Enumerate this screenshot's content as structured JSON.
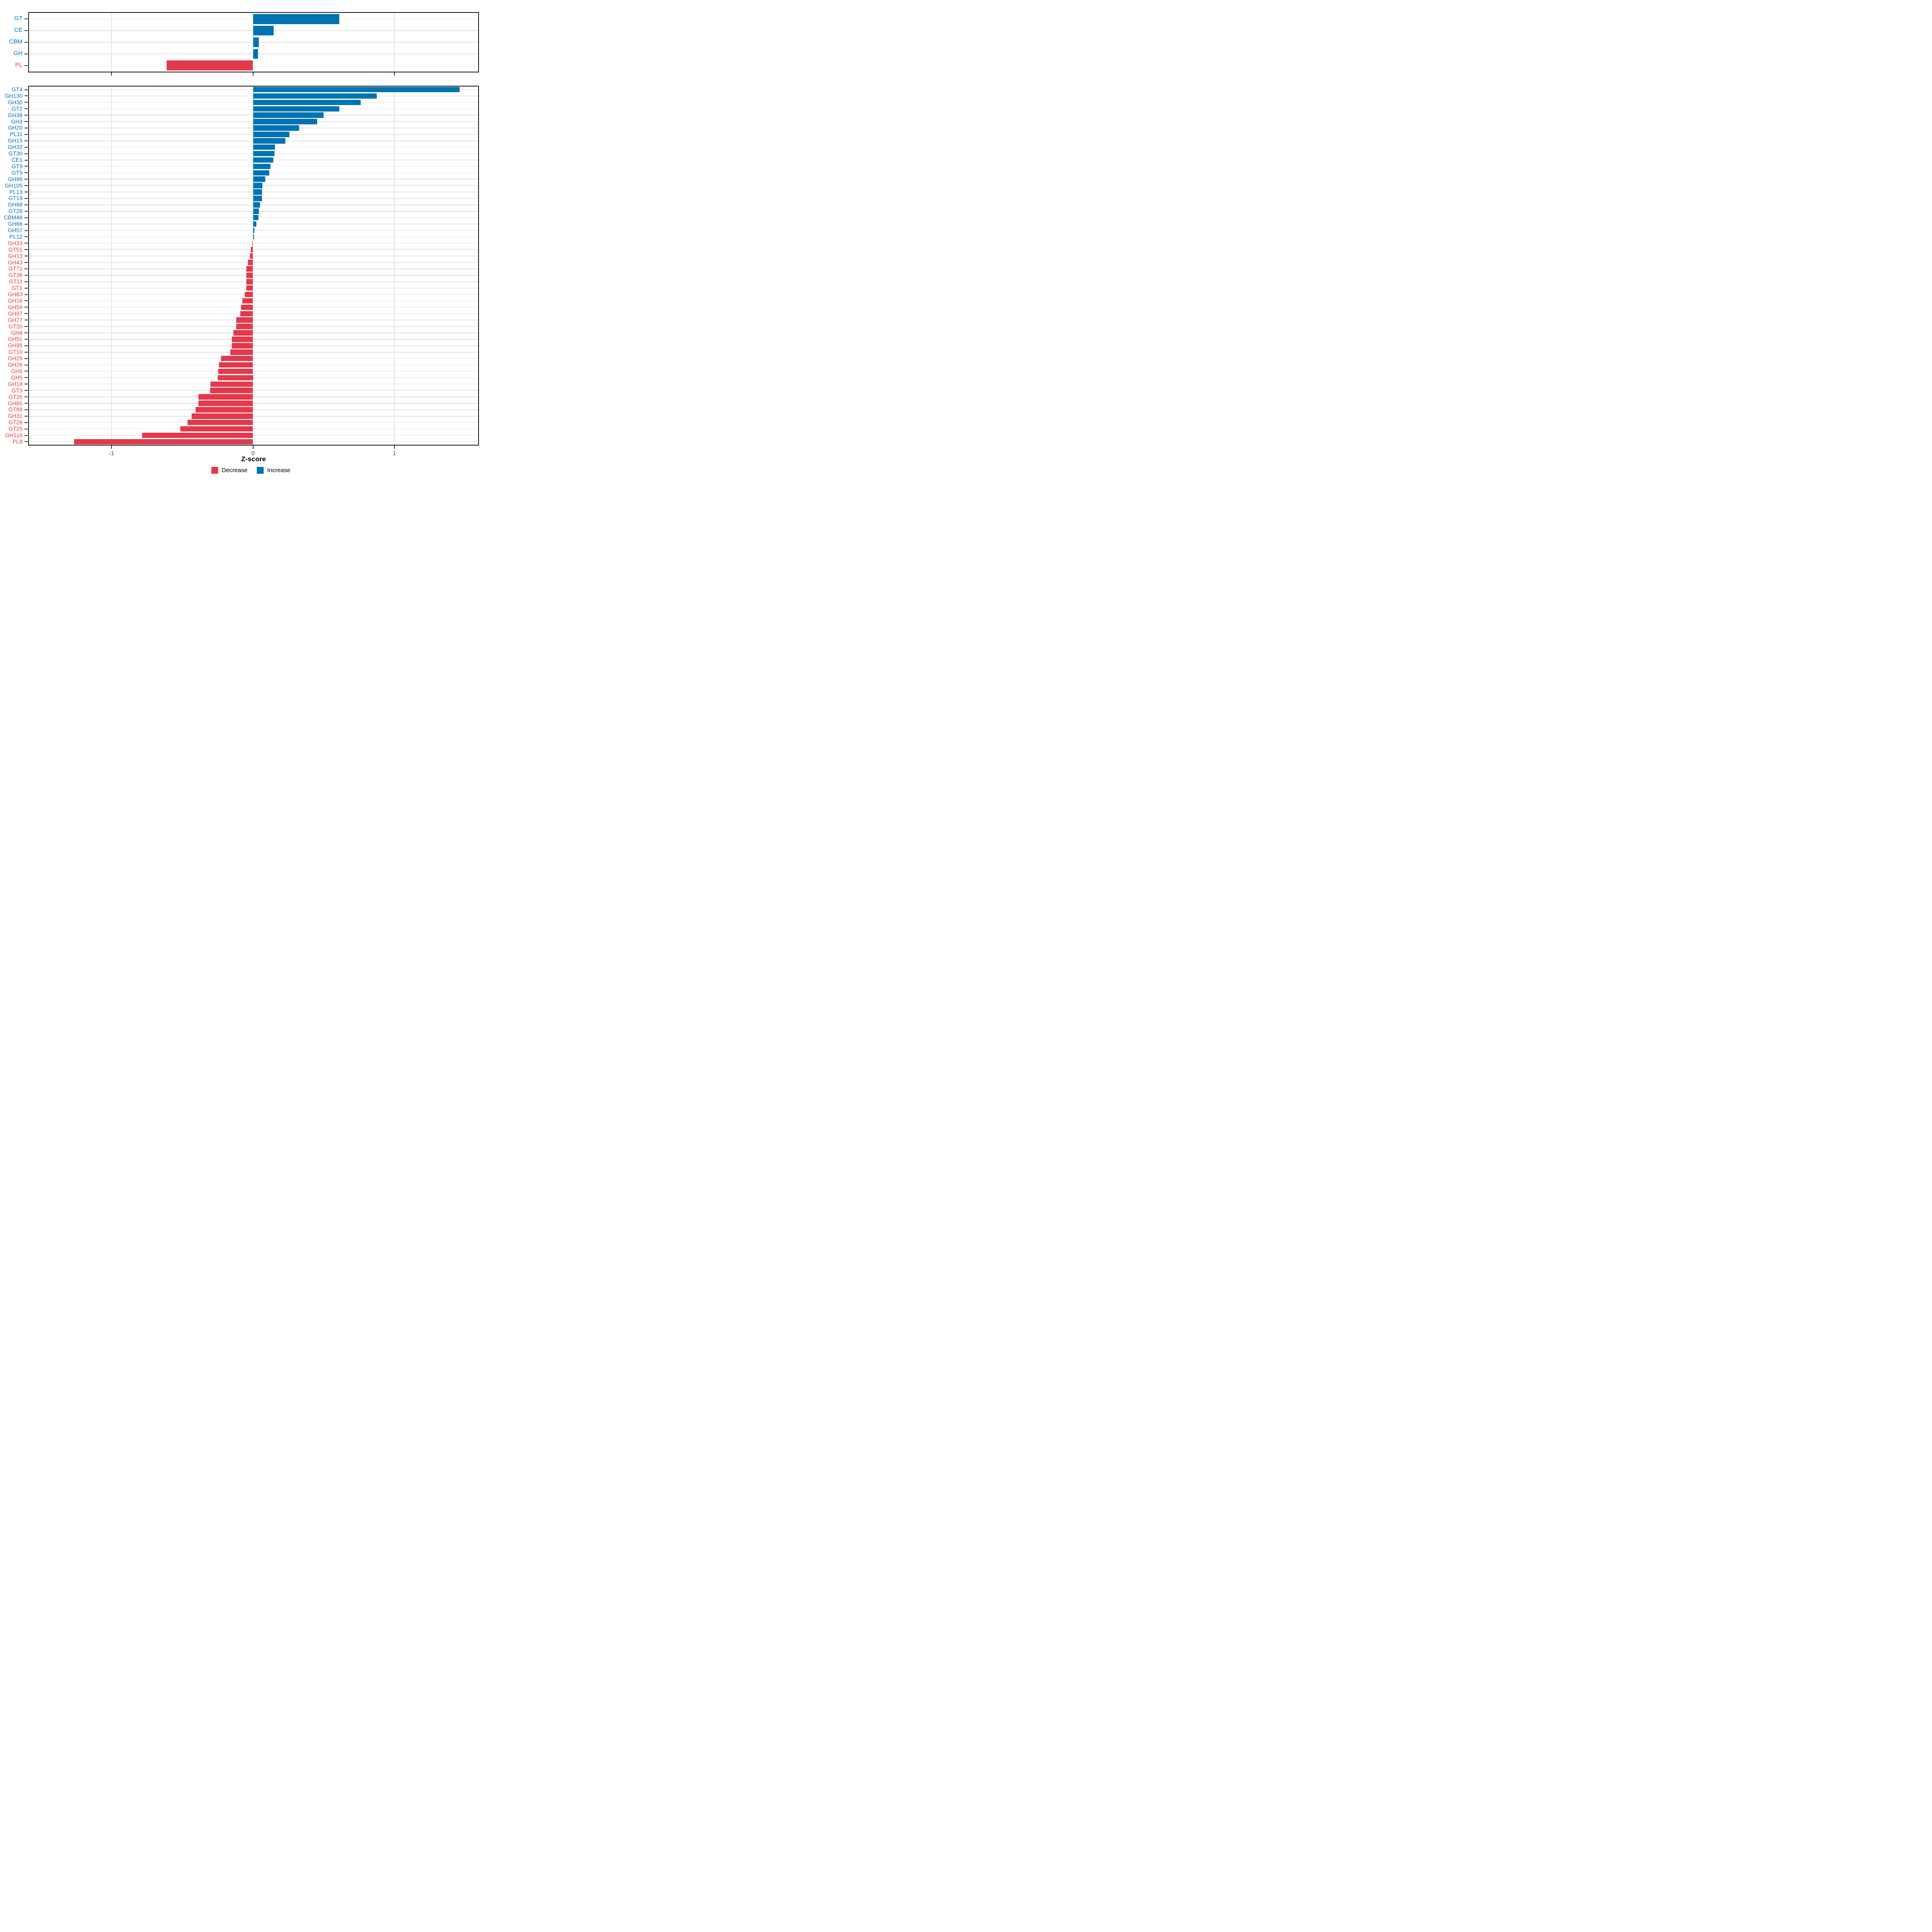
{
  "xlabel": "Z-score",
  "legend": {
    "position": "bottom-center",
    "items": [
      {
        "label": "Decrease",
        "color": "#E4394C"
      },
      {
        "label": "Increase",
        "color": "#0073B2"
      }
    ]
  },
  "colors": {
    "increase": "#0073B2",
    "decrease": "#E4394C",
    "grid": "#E2E2E2",
    "axis_text": "#4D4D4D",
    "panel_border": "#1A1A1A",
    "tick_mark": "#333333"
  },
  "chart_data": [
    {
      "id": "family",
      "type": "bar",
      "orientation": "horizontal",
      "title": "",
      "xlabel": "Z-score",
      "ylabel": "",
      "xlim": [
        -1.59,
        1.6
      ],
      "x_ticks": [
        -1,
        0,
        1
      ],
      "grid": true,
      "legend_position": "bottom",
      "categories": [
        "GT",
        "CE",
        "CBM",
        "GH",
        "PL"
      ],
      "values": [
        0.61,
        0.146,
        0.04,
        0.035,
        -0.61
      ]
    },
    {
      "id": "subfamily",
      "type": "bar",
      "orientation": "horizontal",
      "title": "",
      "xlabel": "Z-score",
      "ylabel": "",
      "xlim": [
        -1.59,
        1.6
      ],
      "x_ticks": [
        -1,
        0,
        1
      ],
      "grid": true,
      "legend_position": "bottom",
      "categories": [
        "GT4",
        "GH130",
        "GH30",
        "GT2",
        "GH38",
        "GH3",
        "GH20",
        "PL11",
        "GH15",
        "GH32",
        "GT30",
        "CE1",
        "GT9",
        "GT5",
        "GH99",
        "GH105",
        "PL13",
        "GT19",
        "GH88",
        "GT28",
        "CBM48",
        "GH66",
        "GH57",
        "PL12",
        "GH33",
        "GT51",
        "GH13",
        "GH43",
        "GT71",
        "GT36",
        "GT11",
        "GT1",
        "GH63",
        "GH16",
        "GH59",
        "GH97",
        "GH77",
        "GT20",
        "GH8",
        "GH51",
        "GH95",
        "GT10",
        "GH29",
        "GH26",
        "GH9",
        "GH5",
        "GH18",
        "GT3",
        "GT35",
        "GH65",
        "GT89",
        "GH31",
        "GT26",
        "GT25",
        "GH116",
        "PL8"
      ],
      "values": [
        1.46,
        0.875,
        0.76,
        0.61,
        0.5,
        0.455,
        0.325,
        0.258,
        0.23,
        0.156,
        0.152,
        0.144,
        0.124,
        0.114,
        0.086,
        0.067,
        0.065,
        0.063,
        0.05,
        0.041,
        0.039,
        0.025,
        0.009,
        0.006,
        -0.004,
        -0.017,
        -0.021,
        -0.036,
        -0.046,
        -0.047,
        -0.047,
        -0.048,
        -0.059,
        -0.076,
        -0.083,
        -0.091,
        -0.117,
        -0.119,
        -0.137,
        -0.148,
        -0.15,
        -0.162,
        -0.227,
        -0.24,
        -0.246,
        -0.25,
        -0.299,
        -0.302,
        -0.385,
        -0.386,
        -0.405,
        -0.435,
        -0.463,
        -0.513,
        -0.785,
        -1.264
      ]
    }
  ]
}
